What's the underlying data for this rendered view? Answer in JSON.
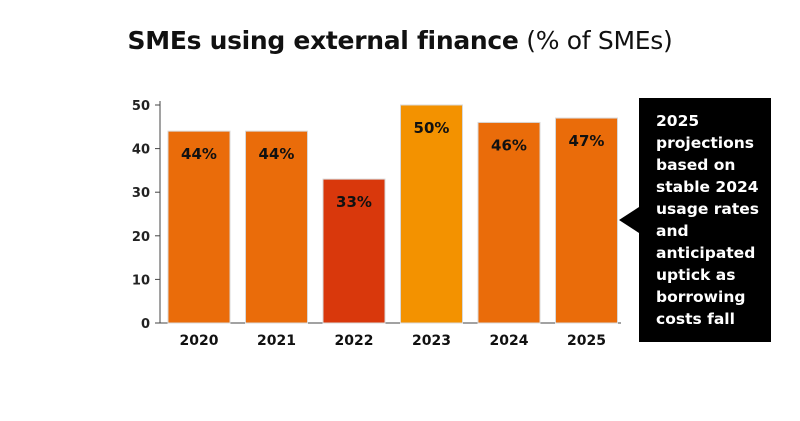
{
  "chart_data": {
    "type": "bar",
    "title": "SMEs using external finance",
    "subtitle": "(% of SMEs)",
    "categories": [
      "2020",
      "2021",
      "2022",
      "2023",
      "2024",
      "2025"
    ],
    "values": [
      44,
      44,
      33,
      50,
      46,
      47
    ],
    "data_labels": [
      "44%",
      "44%",
      "33%",
      "50%",
      "46%",
      "47%"
    ],
    "bar_colors": [
      "#EA6C0A",
      "#EA6C0A",
      "#D9380C",
      "#F39200",
      "#EA6C0A",
      "#EA6C0A"
    ],
    "yticks": [
      0,
      10,
      20,
      30,
      40,
      50
    ],
    "ylim": [
      0,
      50
    ],
    "xlabel": "",
    "ylabel": "",
    "grid": false,
    "annotation": "2025 projections based on stable 2024 usage rates and anticipated uptick as borrowing costs fall"
  }
}
